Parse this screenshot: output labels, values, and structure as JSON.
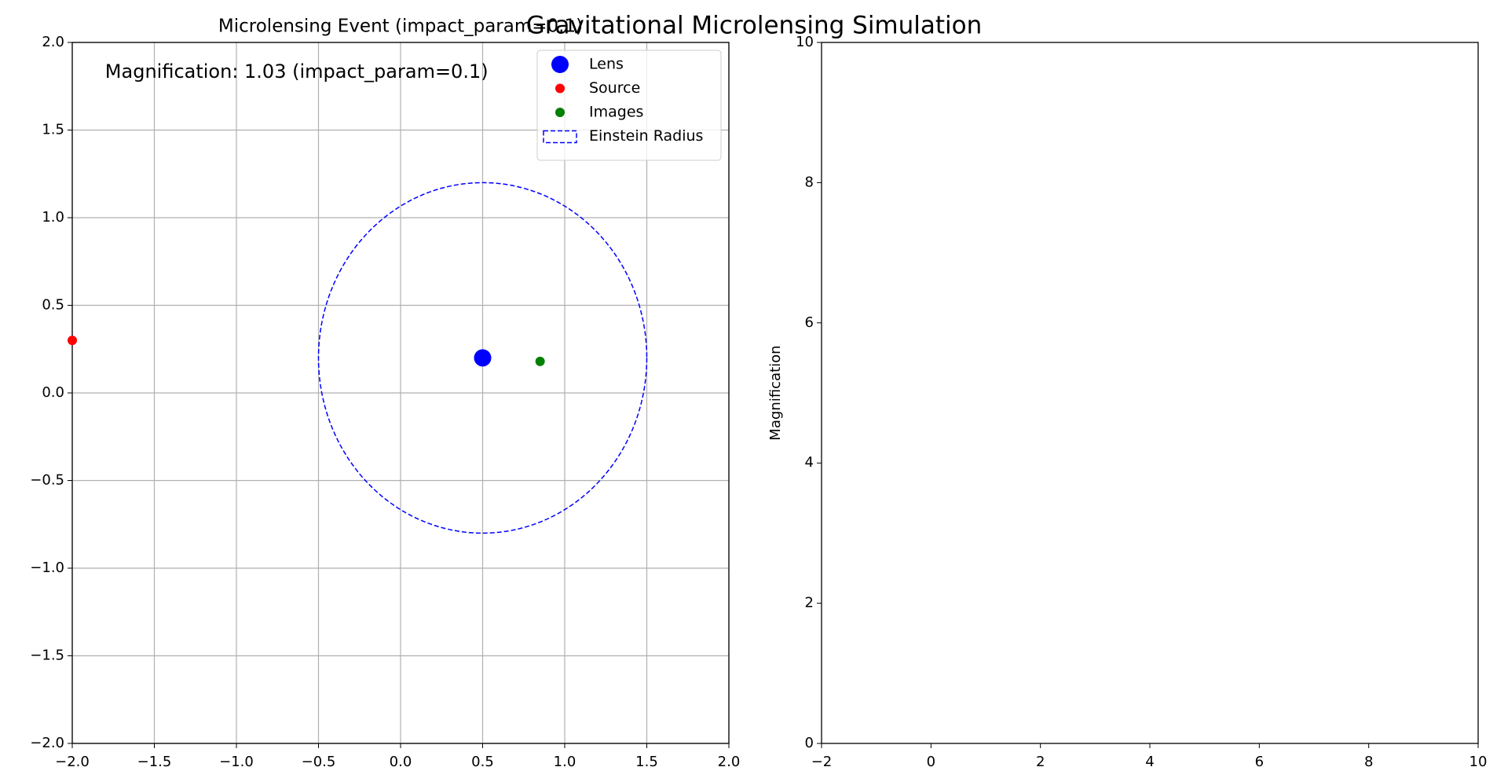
{
  "title": "Gravitational Microlensing Simulation",
  "chart_data": [
    {
      "type": "scatter",
      "title": "Microlensing Event (impact_param=0.1)",
      "annotation": "Magnification: 1.03 (impact_param=0.1)",
      "xlim": [
        -2,
        2
      ],
      "ylim": [
        -2,
        2
      ],
      "xticks": [
        {
          "value": -2,
          "label": "−2.0"
        },
        {
          "value": -1.5,
          "label": "−1.5"
        },
        {
          "value": -1,
          "label": "−1.0"
        },
        {
          "value": -0.5,
          "label": "−0.5"
        },
        {
          "value": 0,
          "label": "0.0"
        },
        0.5,
        {
          "value": 1,
          "label": "1.0"
        },
        1.5,
        {
          "value": 2,
          "label": "2.0"
        }
      ],
      "yticks": [
        {
          "value": -2,
          "label": "−2.0"
        },
        {
          "value": -1.5,
          "label": "−1.5"
        },
        {
          "value": -1,
          "label": "−1.0"
        },
        {
          "value": -0.5,
          "label": "−0.5"
        },
        {
          "value": 0,
          "label": "0.0"
        },
        0.5,
        {
          "value": 1,
          "label": "1.0"
        },
        1.5,
        {
          "value": 2,
          "label": "2.0"
        }
      ],
      "grid": true,
      "legend": "upper right",
      "series": [
        {
          "name": "Lens",
          "color": "#0000ff",
          "markersize": 11,
          "x": [
            0.5
          ],
          "y": [
            0.2
          ]
        },
        {
          "name": "Source",
          "color": "#ff0000",
          "markersize": 6,
          "x": [
            -2
          ],
          "y": [
            0.3
          ]
        },
        {
          "name": "Images",
          "color": "#008000",
          "markersize": 6,
          "x": [
            0.85
          ],
          "y": [
            0.18
          ]
        },
        {
          "name": "Einstein Radius",
          "color": "#0000ff",
          "shape": "circle",
          "linestyle": "dashed",
          "center": [
            0.5,
            0.2
          ],
          "radius": 1.0
        }
      ]
    },
    {
      "type": "line",
      "ylabel": "Magnification",
      "xlim": [
        -2,
        10
      ],
      "ylim": [
        0,
        10
      ],
      "xticks": [
        {
          "value": -2,
          "label": "−2"
        },
        0,
        2,
        4,
        6,
        8,
        10
      ],
      "yticks": [
        0,
        2,
        4,
        6,
        8,
        10
      ],
      "grid": false,
      "series": []
    }
  ]
}
